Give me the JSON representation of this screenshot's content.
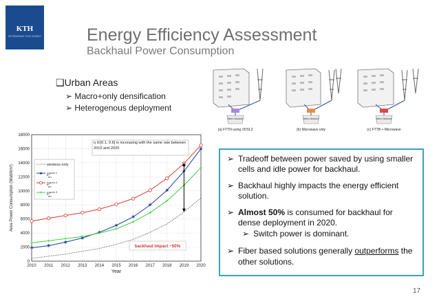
{
  "slide": {
    "logo_text": "KTH",
    "logo_subtext": "VETENSKAP OCH KONST",
    "title": "Energy Efficiency Assessment",
    "subtitle": "Backhaul Power Consumption",
    "page_number": "17"
  },
  "bullets": {
    "main": "Urban Areas",
    "sub": [
      "Macro+only densification",
      "Heterogenous deployment"
    ]
  },
  "network_figure": {
    "panel_a_caption": "(a) FTTN using VDSL2",
    "panel_b_caption": "(b) Microwave only",
    "panel_c_caption": "(c) FTTB + Microwave",
    "node_label": "Metro Network"
  },
  "callout": {
    "p1": "Tradeoff between power saved by using smaller cells and idle power for backhaul.",
    "p2": "Backhaul highly impacts the energy efficient solution.",
    "p3_bold": "Almost 50%",
    "p3_rest": " is consumed for backhaul for dense deployment in 2020.",
    "p3_sub": "Switch power is dominant.",
    "p4_pre": "Fiber based solutions generally ",
    "p4_underline": "outperforms",
    "p4_post": " the other solutions."
  },
  "chart_data": {
    "type": "line",
    "xlabel": "Year",
    "ylabel": "Area Power Consumption (Watt/km²)",
    "xlim": [
      2010,
      2020
    ],
    "ylim": [
      0,
      18000
    ],
    "x": [
      2010,
      2011,
      2012,
      2013,
      2014,
      2015,
      2016,
      2017,
      2018,
      2019,
      2020
    ],
    "yticks": [
      0,
      2000,
      4000,
      6000,
      8000,
      10000,
      12000,
      14000,
      16000,
      18000
    ],
    "annotation": "η ∈[0.1, 0.6] is increasing with the same rate between 2010 and 2020",
    "impact_label": "backhaul impact ~50%",
    "impact_year": 2019,
    "impact_range": [
      7000,
      14000
    ],
    "legend_position": "left",
    "series": [
      {
        "name": "wireless only",
        "color": "#444444",
        "marker": "none",
        "dashed": true,
        "values": [
          400,
          700,
          1000,
          1400,
          1800,
          2400,
          3100,
          4100,
          5300,
          7000,
          9000
        ]
      },
      {
        "name": "P_bh^arch 1",
        "color": "#1f3a9e",
        "marker": "star",
        "values": [
          1900,
          2200,
          2700,
          3300,
          4100,
          5100,
          6300,
          8000,
          10100,
          12800,
          16000
        ]
      },
      {
        "name": "P_bh^arch 2",
        "color": "#d9342b",
        "marker": "circle",
        "values": [
          5700,
          6100,
          6500,
          6900,
          7400,
          8100,
          8900,
          10100,
          11800,
          13900,
          16500
        ]
      },
      {
        "name": "P_bh^arch 3",
        "color": "#3acf3a",
        "marker": "plus",
        "values": [
          2600,
          2900,
          3200,
          3500,
          4000,
          4600,
          5600,
          6900,
          8600,
          10800,
          13300
        ]
      }
    ],
    "legend_labels": {
      "s0": "wireless only",
      "s1_main": "P",
      "s1_sup": "arch 1",
      "s1_sub": "bh",
      "s2_main": "P",
      "s2_sup": "arch 2",
      "s2_sub": "bh",
      "s3_main": "P",
      "s3_sup": "arch 3",
      "s3_sub": "bh"
    }
  }
}
